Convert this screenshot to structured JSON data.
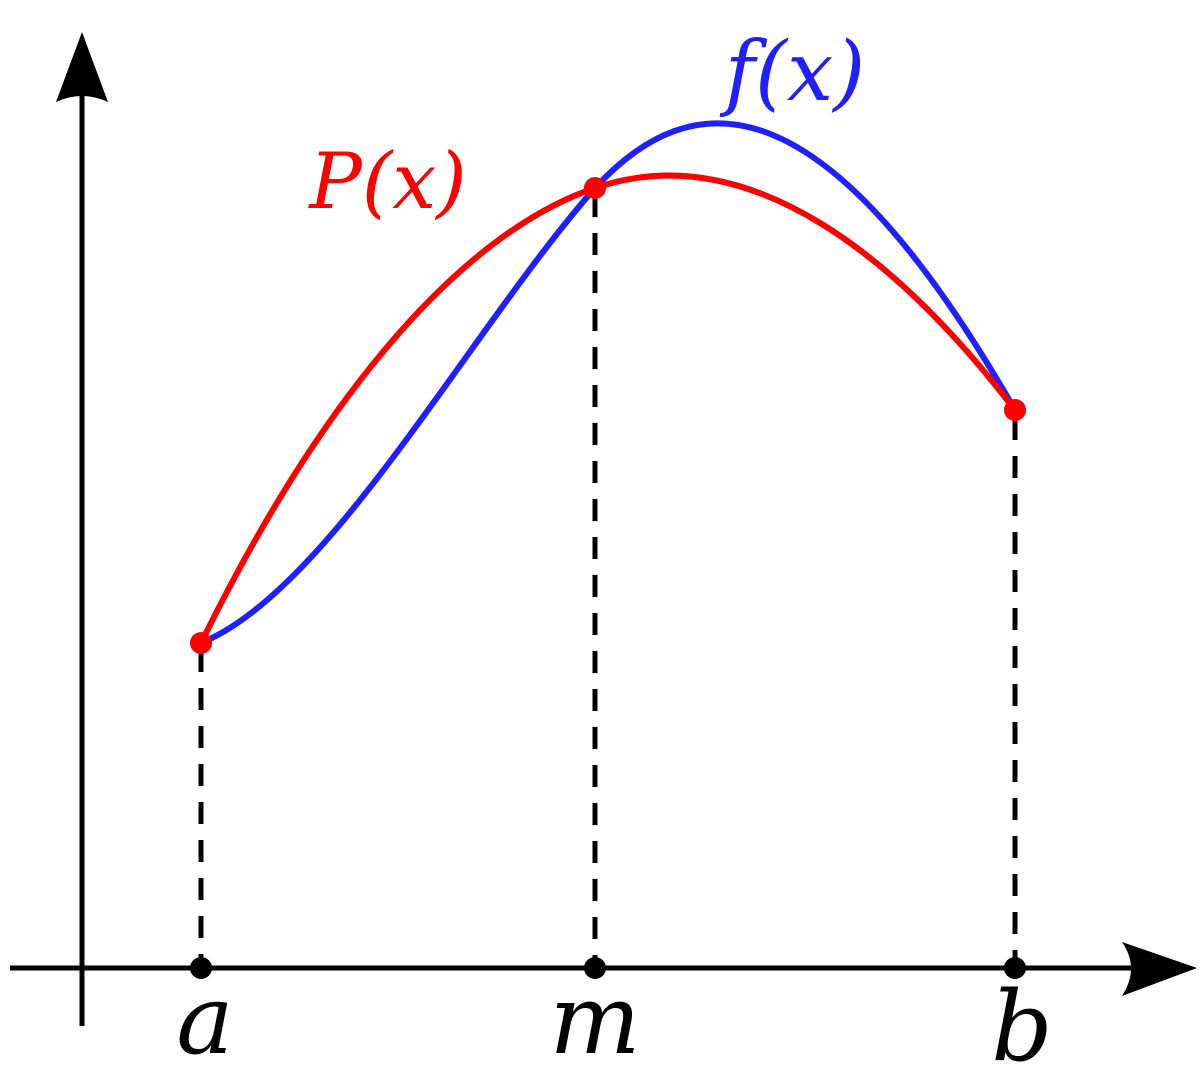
{
  "curve_labels": {
    "function": "f(x)",
    "polynomial": "P(x)"
  },
  "axis_points": [
    "a",
    "m",
    "b"
  ]
}
